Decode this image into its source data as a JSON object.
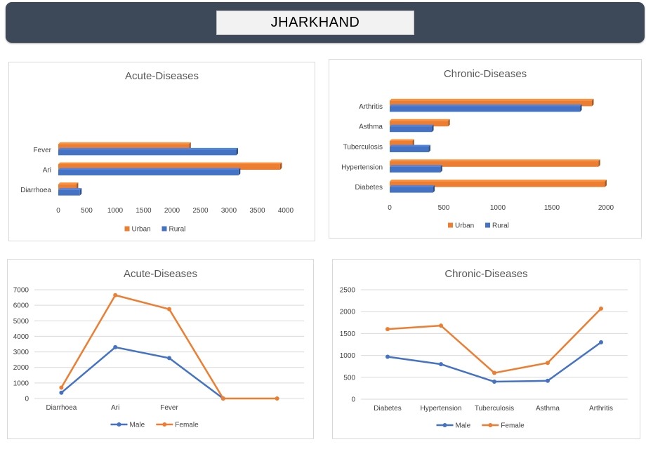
{
  "header": {
    "title": "JHARKHAND"
  },
  "chart_data": [
    {
      "id": "acute-bar",
      "type": "bar",
      "orientation": "horizontal",
      "title": "Acute-Diseases",
      "categories": [
        "Fever",
        "Ari",
        "Diarrhoea"
      ],
      "series": [
        {
          "name": "Urban",
          "color": "#ed7d31",
          "values": [
            2300,
            3900,
            320
          ]
        },
        {
          "name": "Rural",
          "color": "#4472c4",
          "values": [
            3130,
            3170,
            380
          ]
        }
      ],
      "xlim": [
        0,
        4000
      ],
      "xticks": [
        "0",
        "500",
        "1000",
        "1500",
        "2000",
        "2500",
        "3000",
        "3500",
        "4000"
      ],
      "legend": "bottom",
      "grid": false
    },
    {
      "id": "chronic-bar",
      "type": "bar",
      "orientation": "horizontal",
      "title": "Chronic-Diseases",
      "categories": [
        "Arthritis",
        "Asthma",
        "Tuberculosis",
        "Hypertension",
        "Diabetes"
      ],
      "series": [
        {
          "name": "Urban",
          "color": "#ed7d31",
          "values": [
            1870,
            540,
            210,
            1930,
            1990
          ]
        },
        {
          "name": "Rural",
          "color": "#4472c4",
          "values": [
            1760,
            390,
            360,
            470,
            400
          ]
        }
      ],
      "xlim": [
        0,
        2000
      ],
      "xticks": [
        "0",
        "500",
        "1000",
        "1500",
        "2000"
      ],
      "legend": "bottom",
      "grid": false
    },
    {
      "id": "acute-line",
      "type": "line",
      "title": "Acute-Diseases",
      "categories": [
        "Diarrhoea",
        "Ari",
        "Fever",
        "",
        ""
      ],
      "series": [
        {
          "name": "Male",
          "color": "#4472c4",
          "values": [
            370,
            3300,
            2600,
            0,
            null
          ]
        },
        {
          "name": "Female",
          "color": "#ed7d31",
          "values": [
            700,
            6650,
            5750,
            0,
            0
          ]
        }
      ],
      "ylim": [
        0,
        7000
      ],
      "yticks": [
        "0",
        "1000",
        "2000",
        "3000",
        "4000",
        "5000",
        "6000",
        "7000"
      ],
      "legend": "bottom",
      "grid": true
    },
    {
      "id": "chronic-line",
      "type": "line",
      "title": "Chronic-Diseases",
      "categories": [
        "Diabetes",
        "Hypertension",
        "Tuberculosis",
        "Asthma",
        "Arthritis"
      ],
      "series": [
        {
          "name": "Male",
          "color": "#4472c4",
          "values": [
            970,
            800,
            400,
            420,
            1300
          ]
        },
        {
          "name": "Female",
          "color": "#ed7d31",
          "values": [
            1600,
            1680,
            600,
            830,
            2070
          ]
        }
      ],
      "ylim": [
        0,
        2500
      ],
      "yticks": [
        "0",
        "500",
        "1000",
        "1500",
        "2000",
        "2500"
      ],
      "legend": "bottom",
      "grid": true
    }
  ]
}
